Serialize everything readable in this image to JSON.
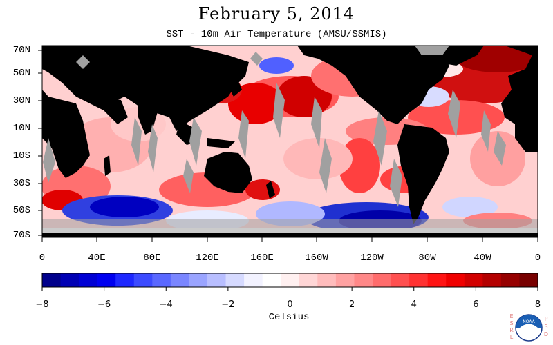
{
  "title": "February 5, 2014",
  "subtitle": "SST - 10m Air Temperature (AMSU/SSMIS)",
  "lat_labels": [
    "70N",
    "50N",
    "30N",
    "10N",
    "10S",
    "30S",
    "50S",
    "70S"
  ],
  "lon_labels": [
    "0",
    "40E",
    "80E",
    "120E",
    "160E",
    "160W",
    "120W",
    "80W",
    "40W",
    "0"
  ],
  "colorbar": {
    "ticks": [
      "−8",
      "−6",
      "−4",
      "−2",
      "0",
      "2",
      "4",
      "6",
      "8"
    ],
    "label": "Celsius",
    "colors": [
      "#00008b",
      "#0000b4",
      "#0000d4",
      "#0000f0",
      "#1e28ff",
      "#3c4bff",
      "#5a68ff",
      "#7a86ff",
      "#9aa4ff",
      "#b8beff",
      "#d6daff",
      "#f2f2ff",
      "#ffffff",
      "#fff0f0",
      "#ffd6d6",
      "#ffbcbc",
      "#ffa2a2",
      "#ff8888",
      "#ff6c6c",
      "#ff5050",
      "#ff3232",
      "#ff1414",
      "#f00000",
      "#d20000",
      "#b40000",
      "#960000",
      "#780000"
    ]
  },
  "logo": {
    "left": "ESRL",
    "right": "PSD",
    "center": "NOAA"
  },
  "colors": {
    "land": "#000000",
    "missing": "#a0a0a0",
    "warm": "#dd0000",
    "cool": "#0000cc"
  }
}
